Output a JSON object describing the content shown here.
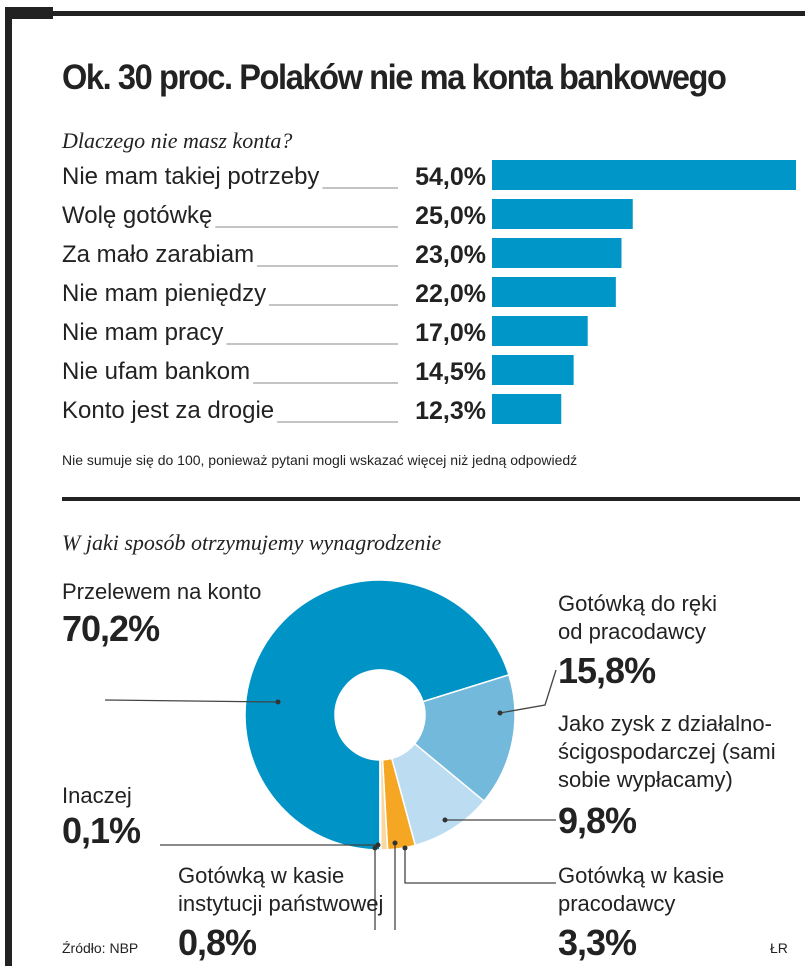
{
  "title": "Ok. 30 proc. Polaków nie ma konta bankowego",
  "chart_data": [
    {
      "type": "bar",
      "orientation": "horizontal",
      "subtitle": "Dlaczego nie masz konta?",
      "categories": [
        "Nie mam takiej potrzeby",
        "Wolę gotówkę",
        "Za mało zarabiam",
        "Nie mam pieniędzy",
        "Nie mam pracy",
        "Nie ufam bankom",
        "Konto jest za drogie"
      ],
      "values": [
        54.0,
        25.0,
        23.0,
        22.0,
        17.0,
        14.5,
        12.3
      ],
      "value_labels": [
        "54,0%",
        "25,0%",
        "23,0%",
        "22,0%",
        "17,0%",
        "14,5%",
        "12,3%"
      ],
      "color": "#0096c8",
      "note": "Nie sumuje się do 100, ponieważ pytani mogli wskazać więcej niż jedną odpowiedź"
    },
    {
      "type": "pie",
      "donut": true,
      "subtitle": "W jaki sposób otrzymujemy wynagrodzenie",
      "slices": [
        {
          "label": "Przelewem na konto",
          "value": 70.2,
          "value_label": "70,2%",
          "color": "#0093c6"
        },
        {
          "label": "Gotówką do ręki od pracodawcy",
          "value": 15.8,
          "value_label": "15,8%",
          "color": "#73b9dc"
        },
        {
          "label": "Jako zysk z działalności gospodarczej (sami sobie wypłacamy)",
          "value": 9.8,
          "value_label": "9,8%",
          "color": "#bcdcf2"
        },
        {
          "label": "Gotówką w kasie pracodawcy",
          "value": 3.3,
          "value_label": "3,3%",
          "color": "#f5a623"
        },
        {
          "label": "Gotówką w kasie instytucji państwowej",
          "value": 0.8,
          "value_label": "0,8%",
          "color": "#f9d7a0"
        },
        {
          "label": "Inaczej",
          "value": 0.1,
          "value_label": "0,1%",
          "color": "#e0e0e0"
        }
      ]
    }
  ],
  "pie_labels": {
    "przelew": "Przelewem na konto",
    "reka1": "Gotówką do ręki",
    "reka2": "od pracodawcy",
    "zysk1": "Jako zysk z działalno-",
    "zysk2": "ścigospodarczej (sami",
    "zysk3": "sobie wypłacamy)",
    "kasa1": "Gotówką w kasie",
    "kasa2": "pracodawcy",
    "inst1": "Gotówką w kasie",
    "inst2": "instytucji państwowej",
    "inaczej": "Inaczej"
  },
  "source": "Źródło: NBP",
  "author": "ŁR"
}
